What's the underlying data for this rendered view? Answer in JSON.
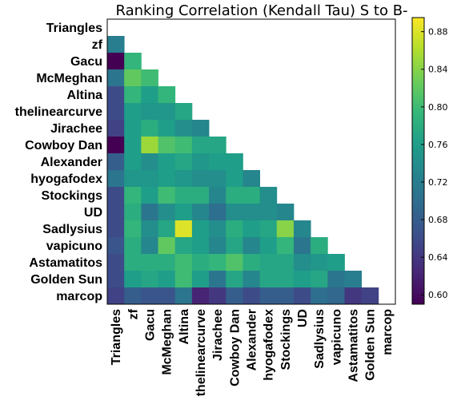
{
  "chart_data": {
    "type": "heatmap",
    "title": "Ranking Correlation (Kendall Tau) S to B-",
    "labels": [
      "Triangles",
      "zf",
      "Gacu",
      "McMeghan",
      "Altina",
      "thelinearcurve",
      "Jirachee",
      "Cowboy Dan",
      "Alexander",
      "hyogafodex",
      "Stockings",
      "UD",
      "Sadlysius",
      "vapicuno",
      "Astamatitos",
      "Golden Sun",
      "marcop"
    ],
    "matrix": [
      [],
      [
        0.72
      ],
      [
        0.59,
        0.79
      ],
      [
        0.71,
        0.82,
        0.8
      ],
      [
        0.66,
        0.79,
        0.76,
        0.79
      ],
      [
        0.66,
        0.76,
        0.75,
        0.75,
        0.77
      ],
      [
        0.65,
        0.76,
        0.78,
        0.76,
        0.74,
        0.73
      ],
      [
        0.59,
        0.76,
        0.85,
        0.81,
        0.8,
        0.77,
        0.77
      ],
      [
        0.68,
        0.76,
        0.74,
        0.76,
        0.77,
        0.75,
        0.76,
        0.76
      ],
      [
        0.71,
        0.75,
        0.75,
        0.76,
        0.75,
        0.74,
        0.74,
        0.76,
        0.73
      ],
      [
        0.66,
        0.79,
        0.76,
        0.8,
        0.78,
        0.78,
        0.73,
        0.78,
        0.78,
        0.74
      ],
      [
        0.66,
        0.78,
        0.71,
        0.74,
        0.76,
        0.73,
        0.7,
        0.74,
        0.74,
        0.74,
        0.73
      ],
      [
        0.66,
        0.79,
        0.74,
        0.77,
        0.88,
        0.76,
        0.74,
        0.78,
        0.76,
        0.77,
        0.84,
        0.73
      ],
      [
        0.67,
        0.78,
        0.73,
        0.82,
        0.77,
        0.76,
        0.73,
        0.77,
        0.73,
        0.76,
        0.79,
        0.71,
        0.78
      ],
      [
        0.66,
        0.78,
        0.78,
        0.78,
        0.8,
        0.78,
        0.79,
        0.81,
        0.78,
        0.77,
        0.77,
        0.74,
        0.75,
        0.76
      ],
      [
        0.66,
        0.76,
        0.77,
        0.76,
        0.8,
        0.76,
        0.71,
        0.77,
        0.73,
        0.77,
        0.77,
        0.76,
        0.77,
        0.71,
        0.72
      ],
      [
        0.65,
        0.68,
        0.67,
        0.67,
        0.71,
        0.62,
        0.64,
        0.68,
        0.66,
        0.68,
        0.68,
        0.66,
        0.7,
        0.69,
        0.64,
        0.65
      ]
    ],
    "colorbar": {
      "min": 0.59,
      "max": 0.895,
      "ticks": [
        0.6,
        0.64,
        0.68,
        0.72,
        0.76,
        0.8,
        0.84,
        0.88
      ],
      "tick_labels": [
        "0.60",
        "0.64",
        "0.68",
        "0.72",
        "0.76",
        "0.80",
        "0.84",
        "0.88"
      ],
      "colormap": "viridis"
    }
  }
}
